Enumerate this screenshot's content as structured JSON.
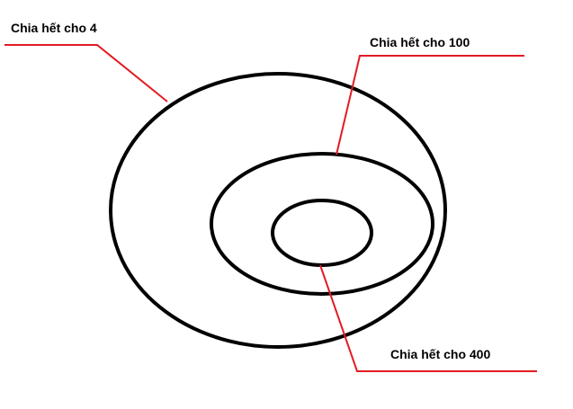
{
  "colors": {
    "ring": "#000000",
    "leader": "#e31b23",
    "text": "#000000"
  },
  "labels": {
    "outer": "Chia hết cho 4",
    "middle": "Chia hết cho 100",
    "inner": "Chia hết cho 400"
  }
}
